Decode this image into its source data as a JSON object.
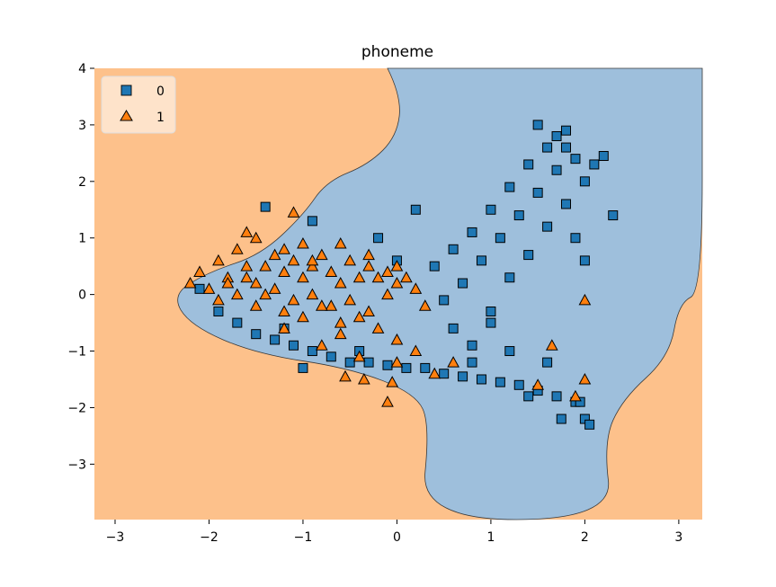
{
  "chart_data": {
    "type": "scatter",
    "title": "phoneme",
    "xlabel": "",
    "ylabel": "",
    "xlim": [
      -3.22,
      3.25
    ],
    "ylim": [
      -3.98,
      4.0
    ],
    "x_ticks": [
      -3,
      -2,
      -1,
      0,
      1,
      2,
      3
    ],
    "y_ticks": [
      -3,
      -2,
      -1,
      0,
      1,
      2,
      3,
      4
    ],
    "x_tick_labels": [
      "−3",
      "−2",
      "−1",
      "0",
      "1",
      "2",
      "3"
    ],
    "y_tick_labels": [
      "−3",
      "−2",
      "−1",
      "0",
      "1",
      "2",
      "3",
      "4"
    ],
    "grid": false,
    "legend_position": "top-left",
    "decision_regions": [
      {
        "class": "0",
        "color": "#9ebfdc",
        "polygon": [
          [
            -0.1,
            4.0
          ],
          [
            0.05,
            3.5
          ],
          [
            0.0,
            2.8
          ],
          [
            -0.3,
            2.3
          ],
          [
            -0.75,
            2.0
          ],
          [
            -1.0,
            1.4
          ],
          [
            -1.45,
            0.7
          ],
          [
            -2.0,
            0.4
          ],
          [
            -2.4,
            0.0
          ],
          [
            -2.2,
            -0.55
          ],
          [
            -1.5,
            -1.05
          ],
          [
            -0.5,
            -1.3
          ],
          [
            0.2,
            -1.75
          ],
          [
            0.35,
            -2.3
          ],
          [
            0.25,
            -3.98
          ],
          [
            2.3,
            -3.98
          ],
          [
            2.2,
            -2.6
          ],
          [
            2.4,
            -1.85
          ],
          [
            2.9,
            -1.1
          ],
          [
            3.0,
            -0.15
          ],
          [
            3.25,
            0.05
          ],
          [
            3.25,
            4.0
          ]
        ]
      },
      {
        "class": "1",
        "color": "#fdc18b"
      }
    ],
    "series": [
      {
        "name": "0",
        "marker": "square",
        "color": "#1f77b4",
        "x": [
          -2.1,
          -1.9,
          -1.7,
          -1.5,
          -1.3,
          -1.1,
          -0.9,
          -0.7,
          -0.5,
          -0.3,
          -0.1,
          0.1,
          0.3,
          0.5,
          0.7,
          0.9,
          1.1,
          1.3,
          1.5,
          1.7,
          1.9,
          2.0,
          0.4,
          0.6,
          0.8,
          1.0,
          1.2,
          1.4,
          1.6,
          1.8,
          0.5,
          0.7,
          0.9,
          1.1,
          1.3,
          1.5,
          1.7,
          1.9,
          2.1,
          2.2,
          0.6,
          0.8,
          1.0,
          1.2,
          1.4,
          1.6,
          1.8,
          2.0,
          1.5,
          1.7,
          1.8,
          1.9,
          2.0,
          1.6,
          1.4,
          1.2,
          1.0,
          0.8,
          -0.4,
          -1.0,
          -1.2,
          0.0,
          0.2,
          -0.2,
          1.75,
          1.95,
          2.05,
          2.3,
          -1.4,
          -0.9
        ],
        "y": [
          0.1,
          -0.3,
          -0.5,
          -0.7,
          -0.8,
          -0.9,
          -1.0,
          -1.1,
          -1.2,
          -1.2,
          -1.25,
          -1.3,
          -1.3,
          -1.4,
          -1.45,
          -1.5,
          -1.55,
          -1.6,
          -1.7,
          -1.8,
          -1.9,
          -2.2,
          0.5,
          0.8,
          1.1,
          1.5,
          1.9,
          2.3,
          2.6,
          2.9,
          -0.1,
          0.2,
          0.6,
          1.0,
          1.4,
          1.8,
          2.2,
          2.4,
          2.3,
          2.45,
          -0.6,
          -0.9,
          -0.3,
          0.3,
          0.7,
          1.2,
          1.6,
          2.0,
          3.0,
          2.8,
          2.6,
          1.0,
          0.6,
          -1.2,
          -1.8,
          -1.0,
          -0.5,
          -1.2,
          -1.0,
          -1.3,
          -0.6,
          0.6,
          1.5,
          1.0,
          -2.2,
          -1.9,
          -2.3,
          1.4,
          1.55,
          1.3
        ]
      },
      {
        "name": "1",
        "marker": "triangle",
        "color": "#ff7f0e",
        "x": [
          -2.2,
          -2.1,
          -2.0,
          -1.9,
          -1.8,
          -1.7,
          -1.6,
          -1.5,
          -1.4,
          -1.3,
          -1.2,
          -1.1,
          -1.0,
          -0.9,
          -0.8,
          -0.7,
          -0.6,
          -0.5,
          -0.4,
          -0.3,
          -0.2,
          -0.1,
          0.0,
          0.1,
          0.2,
          0.3,
          -1.9,
          -1.7,
          -1.5,
          -1.3,
          -1.1,
          -0.9,
          -0.7,
          -0.5,
          -0.3,
          -0.1,
          -1.6,
          -1.4,
          -1.2,
          -1.0,
          -0.8,
          -0.6,
          -0.4,
          -0.2,
          0.0,
          0.2,
          -1.8,
          -1.5,
          -1.2,
          -0.9,
          -0.6,
          -0.3,
          0.0,
          -1.1,
          -1.0,
          -1.6,
          -1.2,
          -0.8,
          -0.4,
          -0.6,
          0.0,
          0.4,
          0.6,
          1.5,
          2.0,
          1.65,
          2.0,
          1.9,
          -0.1,
          -0.05,
          -0.35,
          -0.55
        ],
        "y": [
          0.2,
          0.4,
          0.1,
          0.6,
          0.3,
          0.8,
          0.5,
          0.2,
          0.5,
          0.7,
          0.4,
          0.6,
          0.3,
          0.5,
          0.7,
          0.4,
          0.2,
          0.6,
          0.3,
          0.5,
          0.3,
          0.4,
          0.2,
          0.3,
          0.1,
          -0.2,
          -0.1,
          0.0,
          -0.2,
          0.1,
          -0.1,
          0.0,
          -0.2,
          -0.1,
          -0.3,
          0.0,
          0.3,
          0.0,
          -0.3,
          -0.4,
          -0.2,
          -0.5,
          -0.4,
          -0.6,
          -0.8,
          -1.0,
          0.2,
          1.0,
          0.8,
          0.6,
          0.9,
          0.7,
          0.5,
          1.45,
          0.9,
          1.1,
          -0.6,
          -0.9,
          -1.1,
          -0.7,
          -1.2,
          -1.4,
          -1.2,
          -1.6,
          -1.5,
          -0.9,
          -0.1,
          -1.8,
          -1.9,
          -1.55,
          -1.5,
          -1.45
        ]
      }
    ],
    "legend": [
      {
        "label": "0",
        "marker": "square",
        "color": "#1f77b4"
      },
      {
        "label": "1",
        "marker": "triangle",
        "color": "#ff7f0e"
      }
    ]
  }
}
